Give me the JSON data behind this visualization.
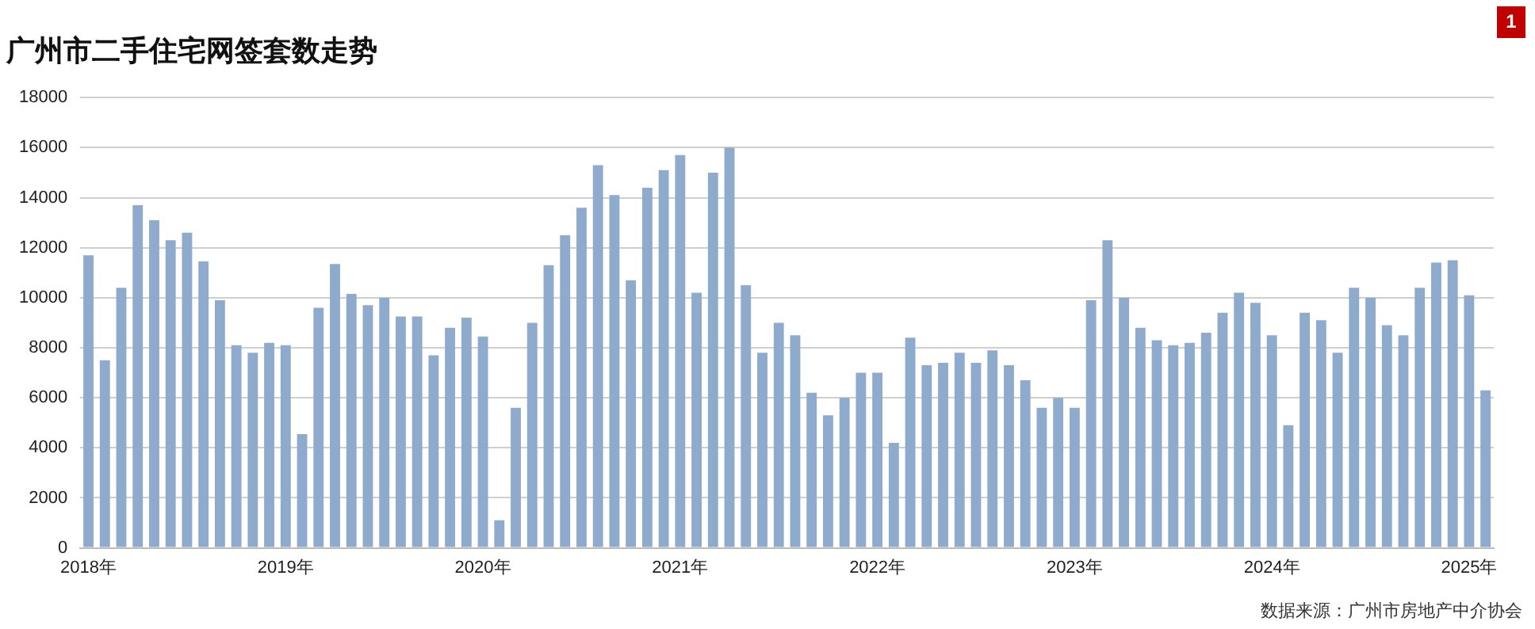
{
  "chart_data": {
    "type": "bar",
    "title": "广州市二手住宅网签套数走势",
    "categories": [
      "2018年",
      null,
      null,
      null,
      null,
      null,
      null,
      null,
      null,
      null,
      null,
      null,
      "2019年",
      null,
      null,
      null,
      null,
      null,
      null,
      null,
      null,
      null,
      null,
      null,
      "2020年",
      null,
      null,
      null,
      null,
      null,
      null,
      null,
      null,
      null,
      null,
      null,
      "2021年",
      null,
      null,
      null,
      null,
      null,
      null,
      null,
      null,
      null,
      null,
      null,
      "2022年",
      null,
      null,
      null,
      null,
      null,
      null,
      null,
      null,
      null,
      null,
      null,
      "2023年",
      null,
      null,
      null,
      null,
      null,
      null,
      null,
      null,
      null,
      null,
      null,
      "2024年",
      null,
      null,
      null,
      null,
      null,
      null,
      null,
      null,
      null,
      null,
      null,
      "2025年",
      null
    ],
    "values": [
      11700,
      7500,
      10400,
      13700,
      13100,
      12300,
      12600,
      11450,
      9900,
      8100,
      7800,
      8200,
      8100,
      4550,
      9600,
      11350,
      10150,
      9700,
      10000,
      9250,
      9250,
      7700,
      8800,
      9200,
      8450,
      1100,
      5600,
      9000,
      11300,
      12500,
      13600,
      15300,
      14100,
      10700,
      14400,
      15100,
      15700,
      10200,
      15000,
      16000,
      10500,
      7800,
      9000,
      8500,
      6200,
      5300,
      6000,
      7000,
      7000,
      4200,
      8400,
      7300,
      7400,
      7800,
      7400,
      7900,
      7300,
      6700,
      5600,
      6000,
      5600,
      9900,
      12300,
      10000,
      8800,
      8300,
      8100,
      8200,
      8600,
      9400,
      10200,
      9800,
      8500,
      4900,
      9400,
      9100,
      7800,
      10400,
      10000,
      8900,
      8500,
      10400,
      11400,
      11500,
      10100,
      6300
    ],
    "color": "#8eaacd",
    "ylim": [
      0,
      18000
    ],
    "yticks": [
      0,
      2000,
      4000,
      6000,
      8000,
      10000,
      12000,
      14000,
      16000,
      18000
    ],
    "grid": "y",
    "legend": false,
    "annotations": [
      "1",
      "数据来源：广州市房地产中介协会"
    ]
  }
}
